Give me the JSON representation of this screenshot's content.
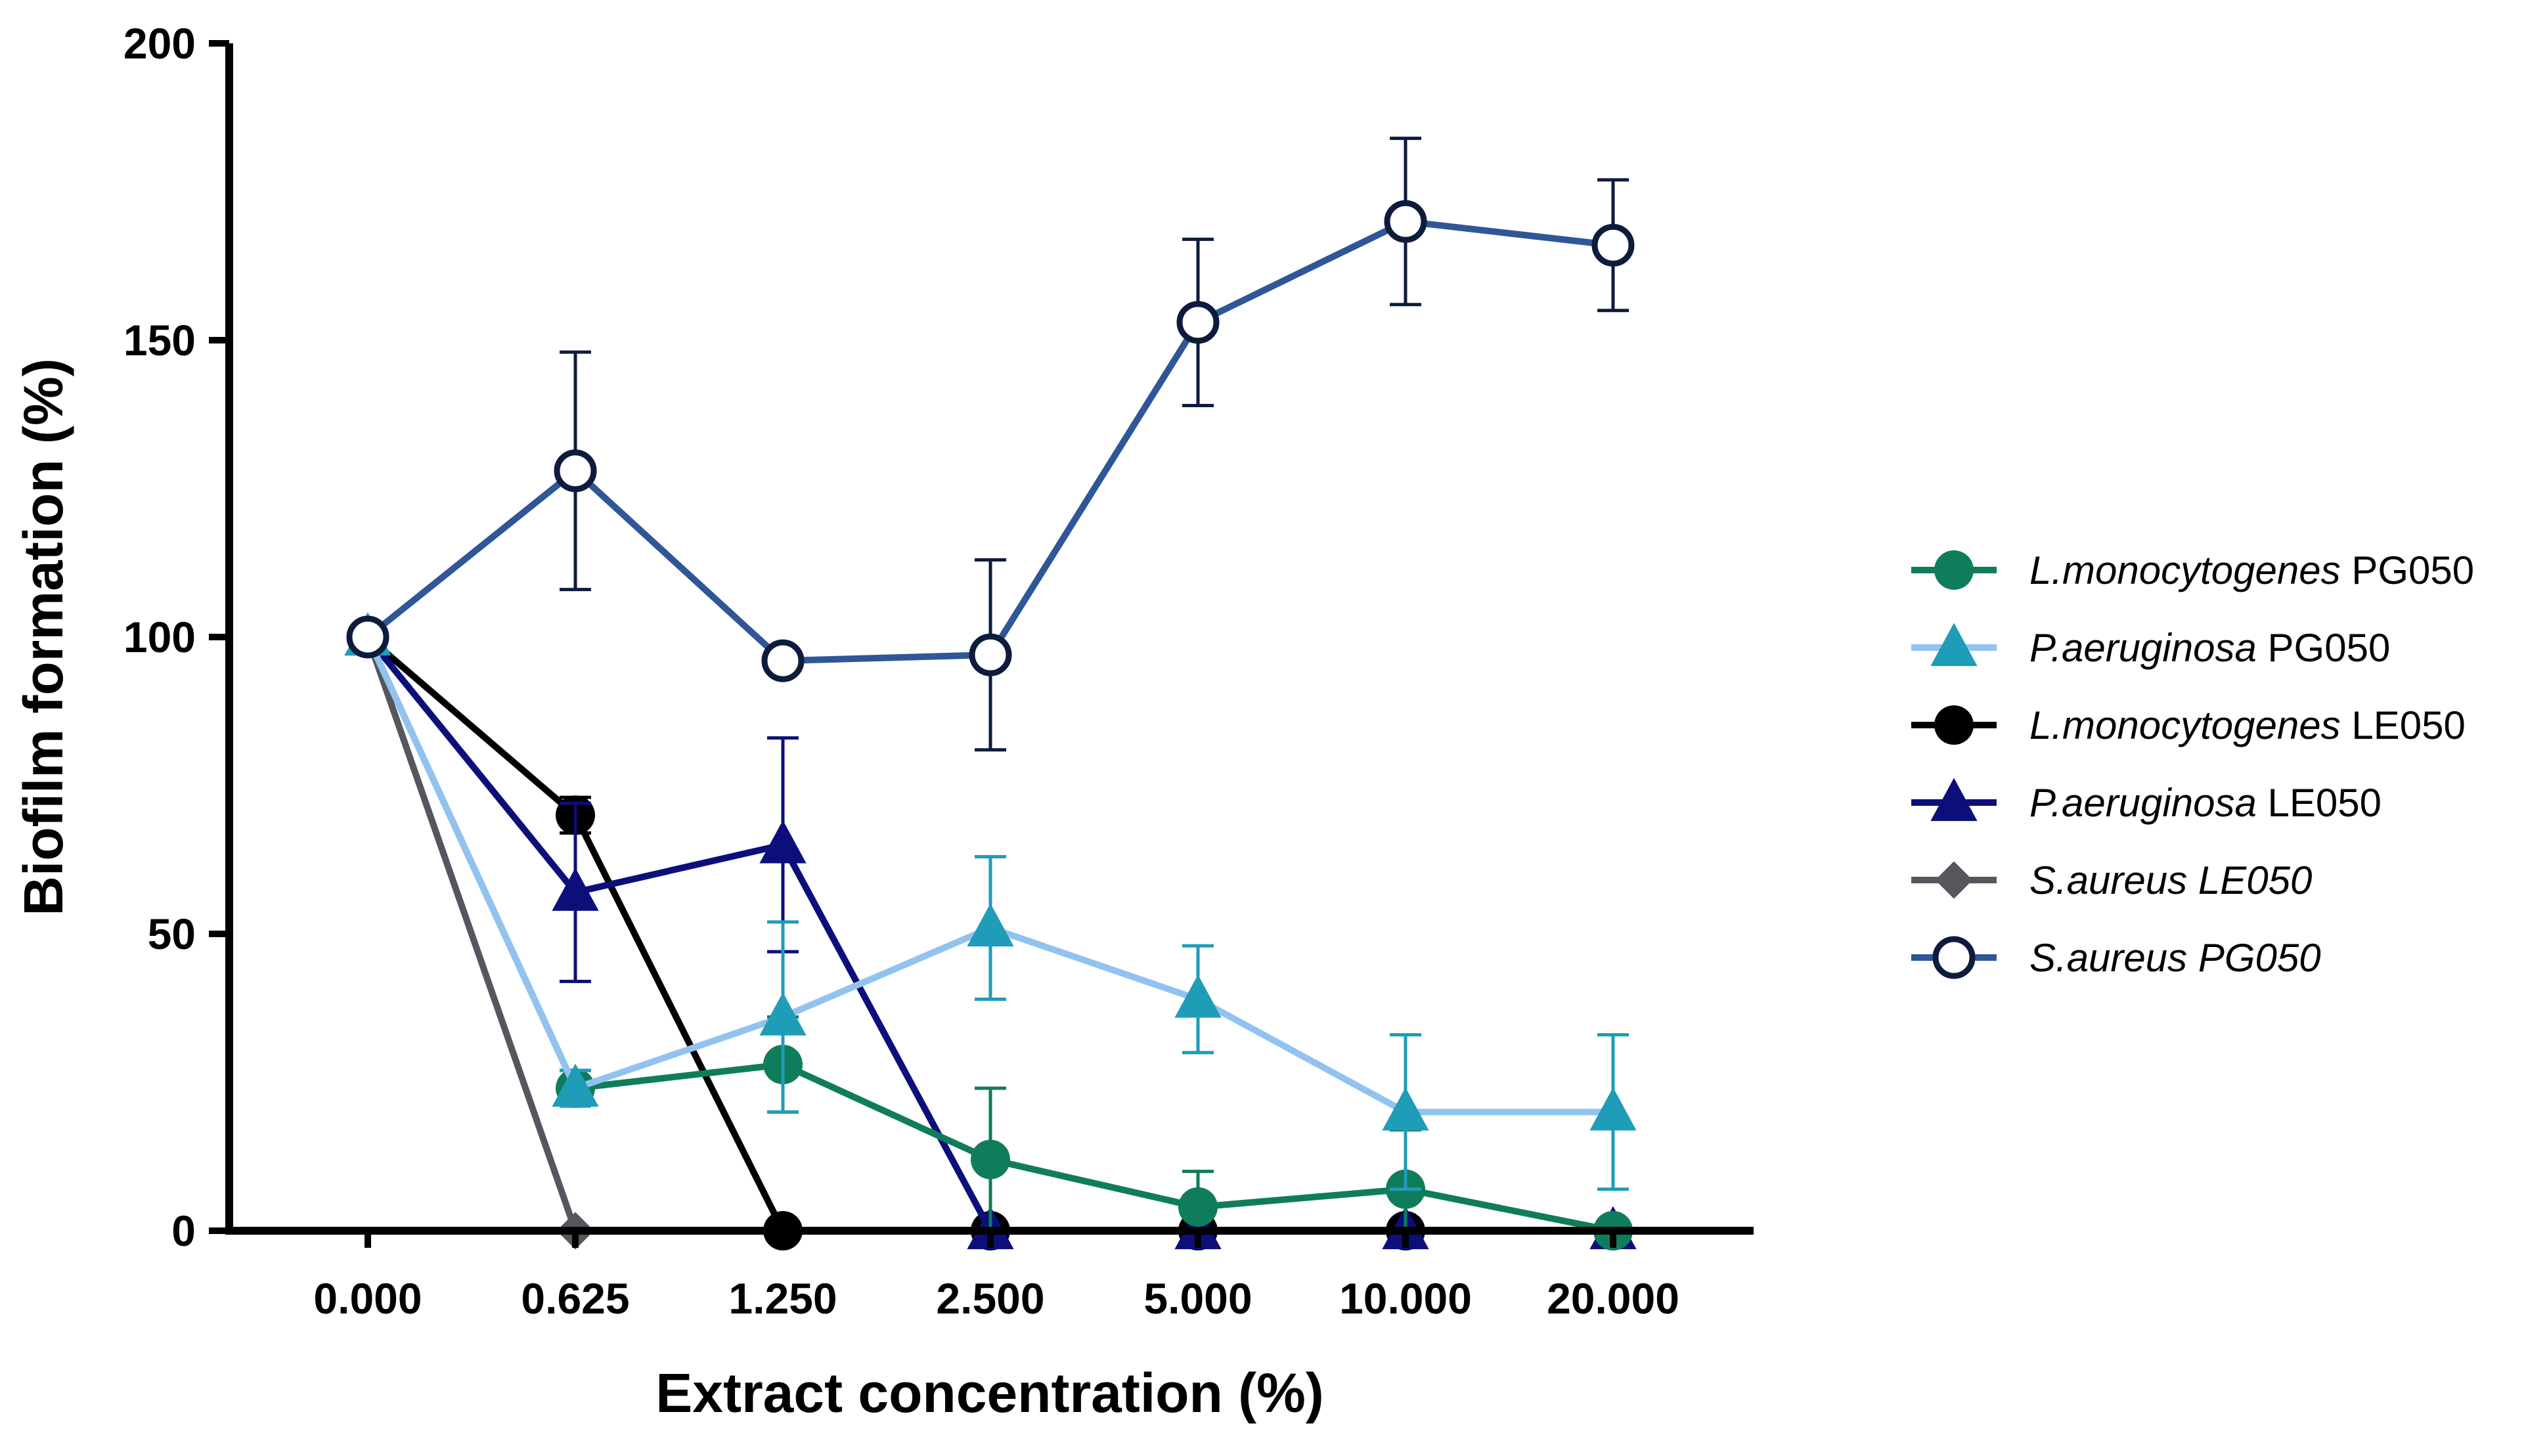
{
  "chart_data": {
    "type": "line",
    "title": "",
    "xlabel": "Extract concentration (%)",
    "ylabel": "Biofilm formation (%)",
    "categories": [
      "0.000",
      "0.625",
      "1.250",
      "2.500",
      "5.000",
      "10.000",
      "20.000"
    ],
    "ylim": [
      0,
      200
    ],
    "yticks": [
      "0",
      "50",
      "100",
      "150",
      "200"
    ],
    "legend_position": "right",
    "series": [
      {
        "name": "L.monocytogenes PG050",
        "name_italic": "L.monocytogenes",
        "name_plain": " PG050",
        "color": "#0f7d5b",
        "err_color": "#0f7d5b",
        "marker": "circle",
        "values": [
          100,
          24,
          28,
          12,
          4,
          7,
          0
        ],
        "errors": [
          0,
          3,
          8,
          12,
          6,
          10,
          0
        ]
      },
      {
        "name": "P.aeruginosa PG050",
        "name_italic": "P.aeruginosa",
        "name_plain": " PG050",
        "color": "#92c3f0",
        "marker_color": "#1f9cb8",
        "err_color": "#1f9cb8",
        "marker": "triangle",
        "values": [
          100,
          24,
          36,
          51,
          39,
          20,
          20
        ],
        "errors": [
          0,
          3,
          16,
          12,
          9,
          13,
          13
        ]
      },
      {
        "name": "L.monocytogenes LE050",
        "name_italic": "L.monocytogenes",
        "name_plain": " LE050",
        "color": "#000000",
        "err_color": "#000000",
        "marker": "circle",
        "values": [
          100,
          70,
          0,
          0,
          0,
          0,
          0
        ],
        "errors": [
          0,
          3,
          0,
          0,
          0,
          0,
          0
        ]
      },
      {
        "name": "P.aeruginosa LE050",
        "name_italic": "P.aeruginosa",
        "name_plain": " LE050",
        "color": "#0c0f7a",
        "err_color": "#0c0f7a",
        "marker": "triangle",
        "values": [
          100,
          57,
          65,
          0,
          0,
          0,
          0
        ],
        "errors": [
          0,
          15,
          18,
          0,
          0,
          0,
          0
        ]
      },
      {
        "name": "S.aureus LE050",
        "name_italic": "S.aureus LE050",
        "name_plain": "",
        "color": "#55565e",
        "err_color": "#55565e",
        "marker": "diamond",
        "values": [
          100,
          0,
          0,
          0,
          0,
          0,
          0
        ],
        "errors": [
          0,
          0,
          0,
          0,
          0,
          0,
          0
        ]
      },
      {
        "name": "S.aureus PG050",
        "name_italic": "S.aureus PG050",
        "name_plain": "",
        "color": "#2f5797",
        "marker_color": "#0d1b3d",
        "err_color": "#0d1b3d",
        "marker": "open-circle",
        "values": [
          100,
          128,
          96,
          97,
          153,
          170,
          166
        ],
        "errors": [
          0,
          20,
          0,
          16,
          14,
          14,
          11
        ]
      }
    ]
  }
}
